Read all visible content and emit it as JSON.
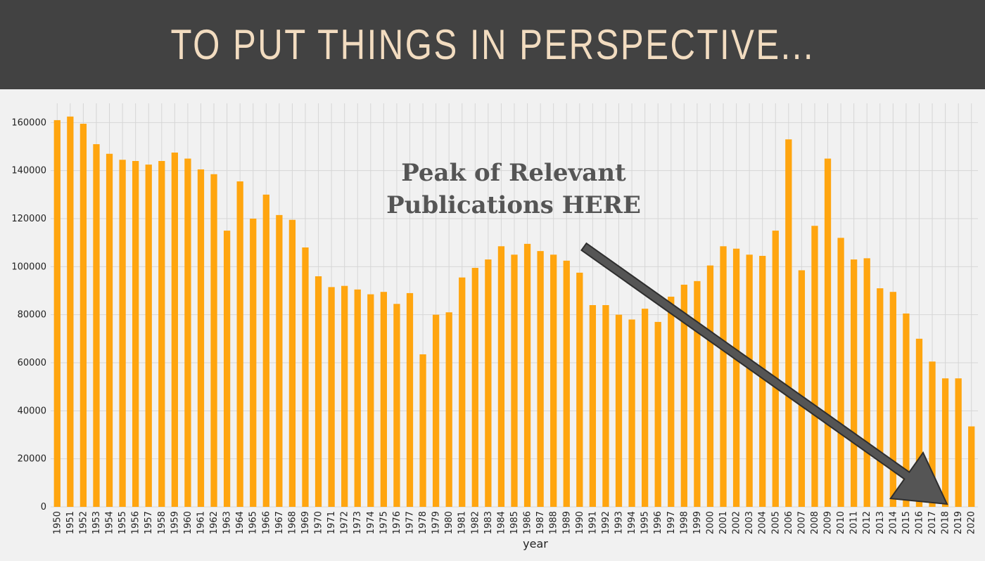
{
  "banner": {
    "title": "TO PUT THINGS IN PERSPECTIVE..."
  },
  "annotation": {
    "text": "Peak of Relevant\nPublications HERE"
  },
  "colors": {
    "bar": "#FFA50F",
    "arrow": "#555555",
    "banner_bg": "#424242",
    "banner_text": "#F2DCC0"
  },
  "chart_data": {
    "type": "bar",
    "xlabel": "year",
    "ylabel": "",
    "ylim": [
      0,
      168000
    ],
    "yticks": [
      0,
      20000,
      40000,
      60000,
      80000,
      100000,
      120000,
      140000,
      160000
    ],
    "grid": true,
    "categories": [
      "1950",
      "1951",
      "1952",
      "1953",
      "1954",
      "1955",
      "1956",
      "1957",
      "1958",
      "1959",
      "1960",
      "1961",
      "1962",
      "1963",
      "1964",
      "1965",
      "1966",
      "1967",
      "1968",
      "1969",
      "1970",
      "1971",
      "1972",
      "1973",
      "1974",
      "1975",
      "1976",
      "1977",
      "1978",
      "1979",
      "1980",
      "1981",
      "1982",
      "1983",
      "1984",
      "1985",
      "1986",
      "1987",
      "1988",
      "1989",
      "1990",
      "1991",
      "1992",
      "1993",
      "1994",
      "1995",
      "1996",
      "1997",
      "1998",
      "1999",
      "2000",
      "2001",
      "2002",
      "2003",
      "2004",
      "2005",
      "2006",
      "2007",
      "2008",
      "2009",
      "2010",
      "2011",
      "2012",
      "2013",
      "2014",
      "2015",
      "2016",
      "2017",
      "2018",
      "2019",
      "2020"
    ],
    "values": [
      161000,
      162500,
      159500,
      151000,
      147000,
      144500,
      144000,
      142500,
      144000,
      147500,
      145000,
      140500,
      138500,
      115000,
      135500,
      120000,
      130000,
      121500,
      119500,
      108000,
      96000,
      91500,
      92000,
      90500,
      88500,
      89500,
      84500,
      89000,
      63500,
      80000,
      81000,
      95500,
      99500,
      103000,
      108500,
      105000,
      109500,
      106500,
      105000,
      102500,
      97500,
      84000,
      84000,
      80000,
      78000,
      82500,
      77000,
      87500,
      92500,
      94000,
      100500,
      108500,
      107500,
      105000,
      104500,
      115000,
      153000,
      98500,
      117000,
      145000,
      112000,
      103000,
      103500,
      91000,
      89500,
      80500,
      70000,
      60500,
      53500,
      53500,
      33500
    ]
  }
}
